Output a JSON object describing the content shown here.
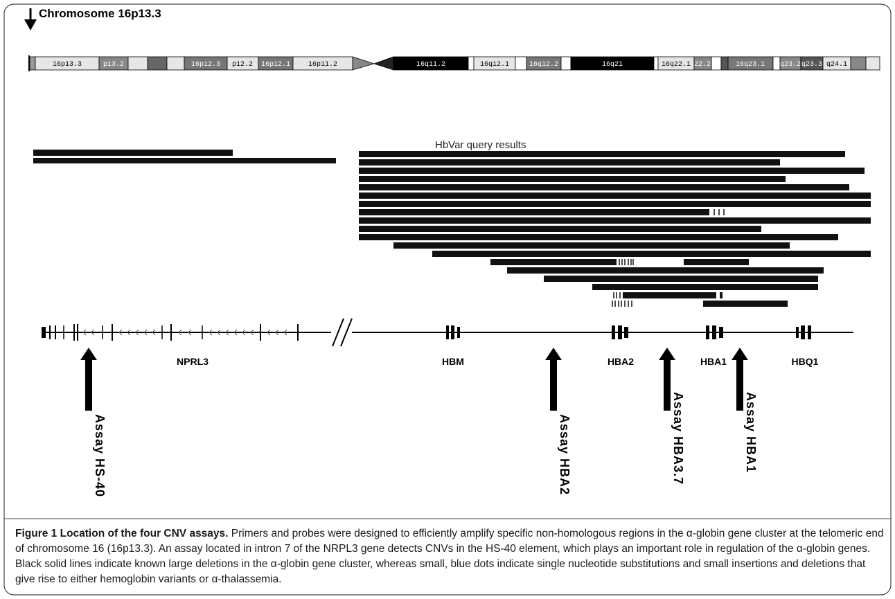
{
  "chromosome": {
    "title": "Chromosome 16p13.3",
    "bands": [
      "16p13.3",
      "p13.2",
      "16p12.3",
      "p12.2",
      "16p12.1",
      "16p11.2",
      "16q11.2",
      "16q12.1",
      "16q12.2",
      "16q21",
      "16q22.1",
      "22.2",
      "16q23.1",
      "q23.2",
      "q23.3",
      "q24.1"
    ]
  },
  "hbvar_label": "HbVar query results",
  "genes": [
    "NPRL3",
    "HBM",
    "HBA2",
    "HBA1",
    "HBQ1"
  ],
  "assays": [
    "Assay HS-40",
    "Assay HBA2",
    "Assay HBA3.7",
    "Assay HBA1"
  ],
  "caption": {
    "title": "Figure 1 Location of the four CNV assays.",
    "text": " Primers and probes were designed to efficiently amplify specific non-homologous regions in the α-globin gene cluster at the telomeric end of chromosome 16 (16p13.3). An assay located in intron 7 of the NRPL3 gene detects CNVs in the HS-40 element, which plays an important role in regulation of the α-globin genes. Black solid lines indicate known large deletions in the α-globin gene cluster, whereas small, blue dots indicate single nucleotide substitutions and small insertions and deletions that give rise to either hemoglobin variants or α-thalassemia."
  }
}
